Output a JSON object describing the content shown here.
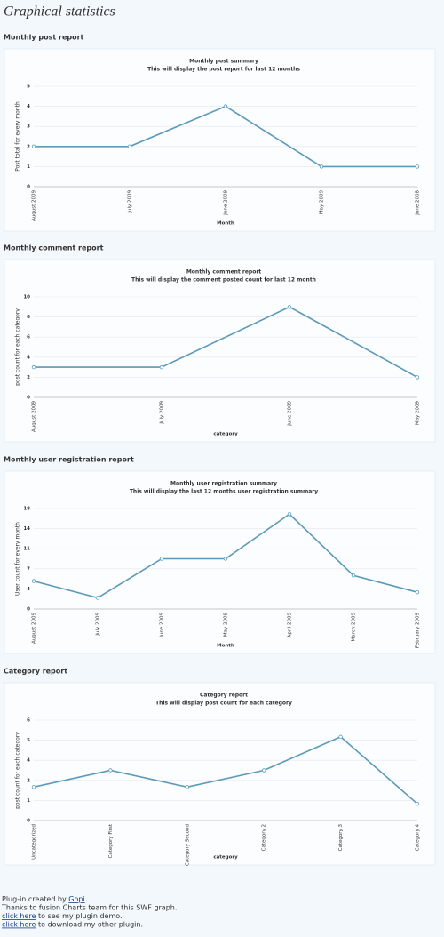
{
  "header": {
    "title": "Graphical statistics"
  },
  "sections": [
    "Monthly post report",
    "Monthly comment report",
    "Monthly user registration report",
    "Category report"
  ],
  "chart_data": [
    {
      "type": "line",
      "title": "Monthly post summary",
      "subtitle": "This will display the post report for last 12 months",
      "x_label": "Month",
      "y_label": "Post total for every month",
      "categories": [
        "August 2009",
        "July 2009",
        "June 2009",
        "May 2009",
        "June 2008"
      ],
      "values": [
        2,
        2,
        4,
        1,
        1
      ],
      "color": "#5a9ab8",
      "ylim": [
        0,
        5
      ],
      "yticks": [
        0,
        1,
        2,
        3,
        4,
        5
      ],
      "grid": true
    },
    {
      "type": "line",
      "title": "Monthly comment report",
      "subtitle": "This will display the comment posted count for last 12 month",
      "x_label": "category",
      "y_label": "post count for each category",
      "categories": [
        "August 2009",
        "July 2009",
        "June 2009",
        "May 2009"
      ],
      "values": [
        3,
        3,
        9,
        2
      ],
      "color": "#5a9ab8",
      "ylim": [
        0,
        10
      ],
      "yticks": [
        0,
        2,
        4,
        6,
        8,
        10
      ],
      "grid": true
    },
    {
      "type": "line",
      "title": "Monthly user registration summary",
      "subtitle": "This will display the last 12 months user registration summary",
      "x_label": "Month",
      "y_label": "User count for every month",
      "categories": [
        "August 2009",
        "July 2009",
        "June 2009",
        "May 2009",
        "April 2009",
        "March 2009",
        "February 2009"
      ],
      "values": [
        5,
        2,
        9,
        9,
        17,
        6,
        3
      ],
      "color": "#5a9ab8",
      "ylim": [
        0,
        18
      ],
      "yticks": [
        0,
        {
          "value": 3.6,
          "label": "4"
        },
        {
          "value": 7.2,
          "label": "7"
        },
        {
          "value": 10.8,
          "label": "11"
        },
        {
          "value": 14.4,
          "label": "14"
        },
        18
      ],
      "grid": true
    },
    {
      "type": "line",
      "title": "Category report",
      "subtitle": "This will display post count for each category",
      "x_label": "category",
      "y_label": "post count for each category",
      "categories": [
        "Uncategorized",
        "Category First",
        "Category Second",
        "Category 2",
        "Category 3",
        "Category 4"
      ],
      "values": [
        2,
        3,
        2,
        3,
        5,
        1
      ],
      "color": "#5a9ab8",
      "ylim": [
        0,
        6
      ],
      "yticks": [
        0,
        {
          "value": 1.2,
          "label": "1"
        },
        {
          "value": 2.4,
          "label": "2"
        },
        {
          "value": 3.6,
          "label": "4"
        },
        {
          "value": 4.8,
          "label": "5"
        },
        6
      ],
      "grid": true
    }
  ],
  "footer": {
    "lines": [
      [
        {
          "text": "Plug-in created by "
        },
        {
          "link": "Gopi"
        },
        {
          "text": "."
        }
      ],
      [
        {
          "text": "Thanks to fusion Charts team for this SWF graph."
        }
      ],
      [
        {
          "link": "click here"
        },
        {
          "text": " to see my plugin demo."
        }
      ],
      [
        {
          "link": "click here"
        },
        {
          "text": " to download my other plugin."
        }
      ]
    ]
  }
}
